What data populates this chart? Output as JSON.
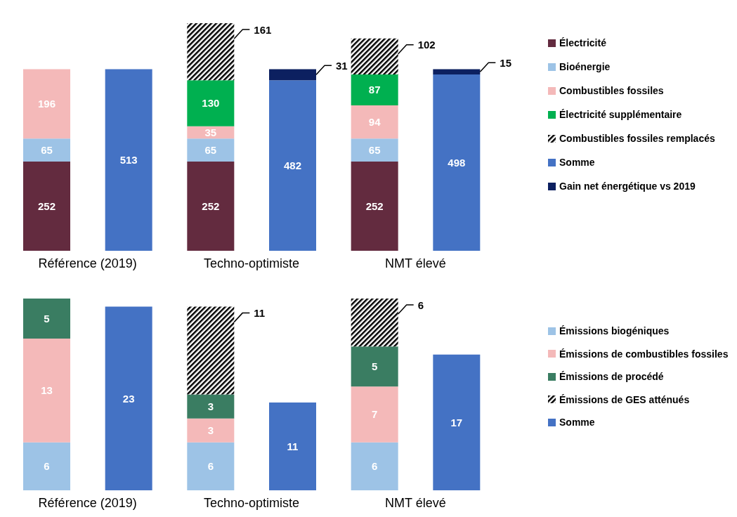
{
  "chart_data": [
    {
      "type": "bar",
      "stacked": true,
      "data_labels": true,
      "legend": "right",
      "categories": [
        "Référence (2019)",
        null,
        "Techno-optimiste",
        null,
        "NMT élevé",
        null
      ],
      "series": [
        {
          "name": "Électricité",
          "color": "#632b3f",
          "values": [
            252,
            null,
            252,
            null,
            252,
            null
          ]
        },
        {
          "name": "Bioénergie",
          "color": "#9dc3e6",
          "values": [
            65,
            null,
            65,
            null,
            65,
            null
          ]
        },
        {
          "name": "Combustibles fossiles",
          "color": "#f4b9b9",
          "values": [
            196,
            null,
            35,
            null,
            94,
            null
          ]
        },
        {
          "name": "Électricité supplémentaire",
          "color": "#00b050",
          "values": [
            null,
            null,
            130,
            null,
            87,
            null
          ]
        },
        {
          "name": "Combustibles fossiles remplacés",
          "color": "#000000",
          "values": [
            null,
            null,
            161,
            null,
            102,
            null
          ]
        },
        {
          "name": "Somme",
          "color": "#4472c4",
          "values": [
            null,
            513,
            null,
            482,
            null,
            498
          ]
        },
        {
          "name": "Gain net énergétique vs 2019",
          "color": "#0c2060",
          "values": [
            null,
            null,
            null,
            31,
            null,
            15
          ]
        }
      ]
    },
    {
      "type": "bar",
      "stacked": true,
      "data_labels": true,
      "legend": "right",
      "categories": [
        "Référence (2019)",
        null,
        "Techno-optimiste",
        null,
        "NMT élevé",
        null
      ],
      "series": [
        {
          "name": "Émissions biogéniques",
          "color": "#9dc3e6",
          "values": [
            6,
            null,
            6,
            null,
            6,
            null
          ]
        },
        {
          "name": "Émissions de combustibles fossiles",
          "color": "#f4b9b9",
          "values": [
            13,
            null,
            3,
            null,
            7,
            null
          ]
        },
        {
          "name": "Émissions de procédé",
          "color": "#3a7d62",
          "values": [
            5,
            null,
            3,
            null,
            5,
            null
          ]
        },
        {
          "name": "Émissions de GES atténués",
          "color": "#000000",
          "values": [
            null,
            null,
            11,
            null,
            6,
            null
          ]
        },
        {
          "name": "Somme",
          "color": "#4472c4",
          "values": [
            null,
            23,
            null,
            11,
            null,
            17
          ]
        }
      ]
    }
  ]
}
